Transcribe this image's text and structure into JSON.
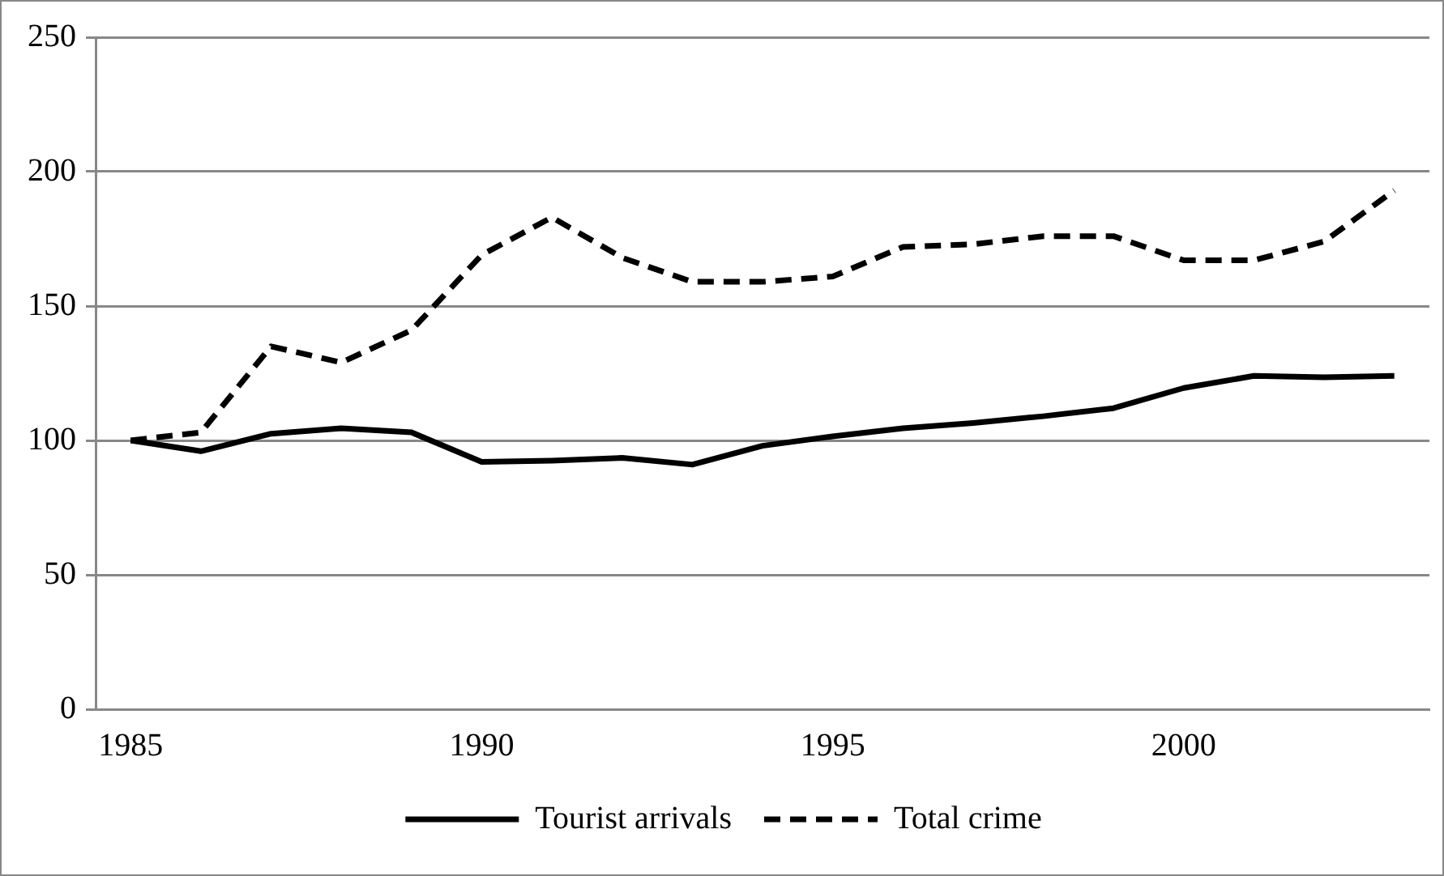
{
  "chart_data": {
    "type": "line",
    "categories": [
      "1985",
      null,
      null,
      null,
      null,
      "1990",
      null,
      null,
      null,
      null,
      "1995",
      null,
      null,
      null,
      null,
      "2000",
      null,
      null,
      null
    ],
    "series": [
      {
        "name": "Tourist arrivals",
        "color": "#000000",
        "line_style": "solid",
        "values": [
          100,
          96,
          102.5,
          104.5,
          103,
          92,
          92.5,
          93.5,
          91,
          98,
          101.5,
          104.5,
          106.5,
          109,
          112,
          119.5,
          124,
          123.5,
          124
        ]
      },
      {
        "name": "Total crime",
        "color": "#000000",
        "line_style": "dashed",
        "values": [
          100,
          103,
          135,
          129,
          141,
          169,
          183,
          168,
          159,
          159,
          161,
          172,
          173,
          176,
          176,
          167,
          167,
          174,
          193
        ]
      }
    ],
    "ylim": [
      0,
      250
    ],
    "yticks": [
      0,
      50,
      100,
      150,
      200,
      250
    ],
    "grid": "y",
    "legend": "bottom",
    "marker": "none"
  }
}
